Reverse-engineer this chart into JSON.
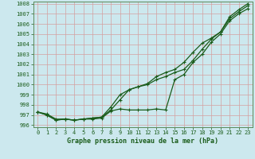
{
  "title": "Graphe pression niveau de la mer (hPa)",
  "bg_color": "#cce8ee",
  "grid_color": "#b8d4d8",
  "line_color": "#1a5c1a",
  "tick_color": "#1a5c1a",
  "spine_color": "#5a8a5a",
  "xlim": [
    -0.5,
    23.5
  ],
  "ylim": [
    995.8,
    1008.2
  ],
  "yticks": [
    996,
    997,
    998,
    999,
    1000,
    1001,
    1002,
    1003,
    1004,
    1005,
    1006,
    1007,
    1008
  ],
  "xticks": [
    0,
    1,
    2,
    3,
    4,
    5,
    6,
    7,
    8,
    9,
    10,
    11,
    12,
    13,
    14,
    15,
    16,
    17,
    18,
    19,
    20,
    21,
    22,
    23
  ],
  "series": [
    [
      997.3,
      997.0,
      996.5,
      996.6,
      996.5,
      996.6,
      996.6,
      996.7,
      997.4,
      997.6,
      997.5,
      997.5,
      997.5,
      997.6,
      997.5,
      1000.5,
      1001.0,
      1002.2,
      1003.0,
      1004.2,
      1005.0,
      1006.3,
      1007.0,
      1007.5
    ],
    [
      997.3,
      997.0,
      996.5,
      996.6,
      996.5,
      996.6,
      996.7,
      996.8,
      997.5,
      998.5,
      999.5,
      999.8,
      1000.0,
      1000.5,
      1000.8,
      1001.2,
      1001.5,
      1002.4,
      1003.5,
      1004.5,
      1005.2,
      1006.5,
      1007.2,
      1007.8
    ],
    [
      997.3,
      997.1,
      996.6,
      996.6,
      996.5,
      996.6,
      996.7,
      996.8,
      997.8,
      999.0,
      999.5,
      999.8,
      1000.1,
      1000.8,
      1001.2,
      1001.5,
      1002.2,
      1003.2,
      1004.1,
      1004.6,
      1005.2,
      1006.7,
      1007.4,
      1008.0
    ]
  ]
}
